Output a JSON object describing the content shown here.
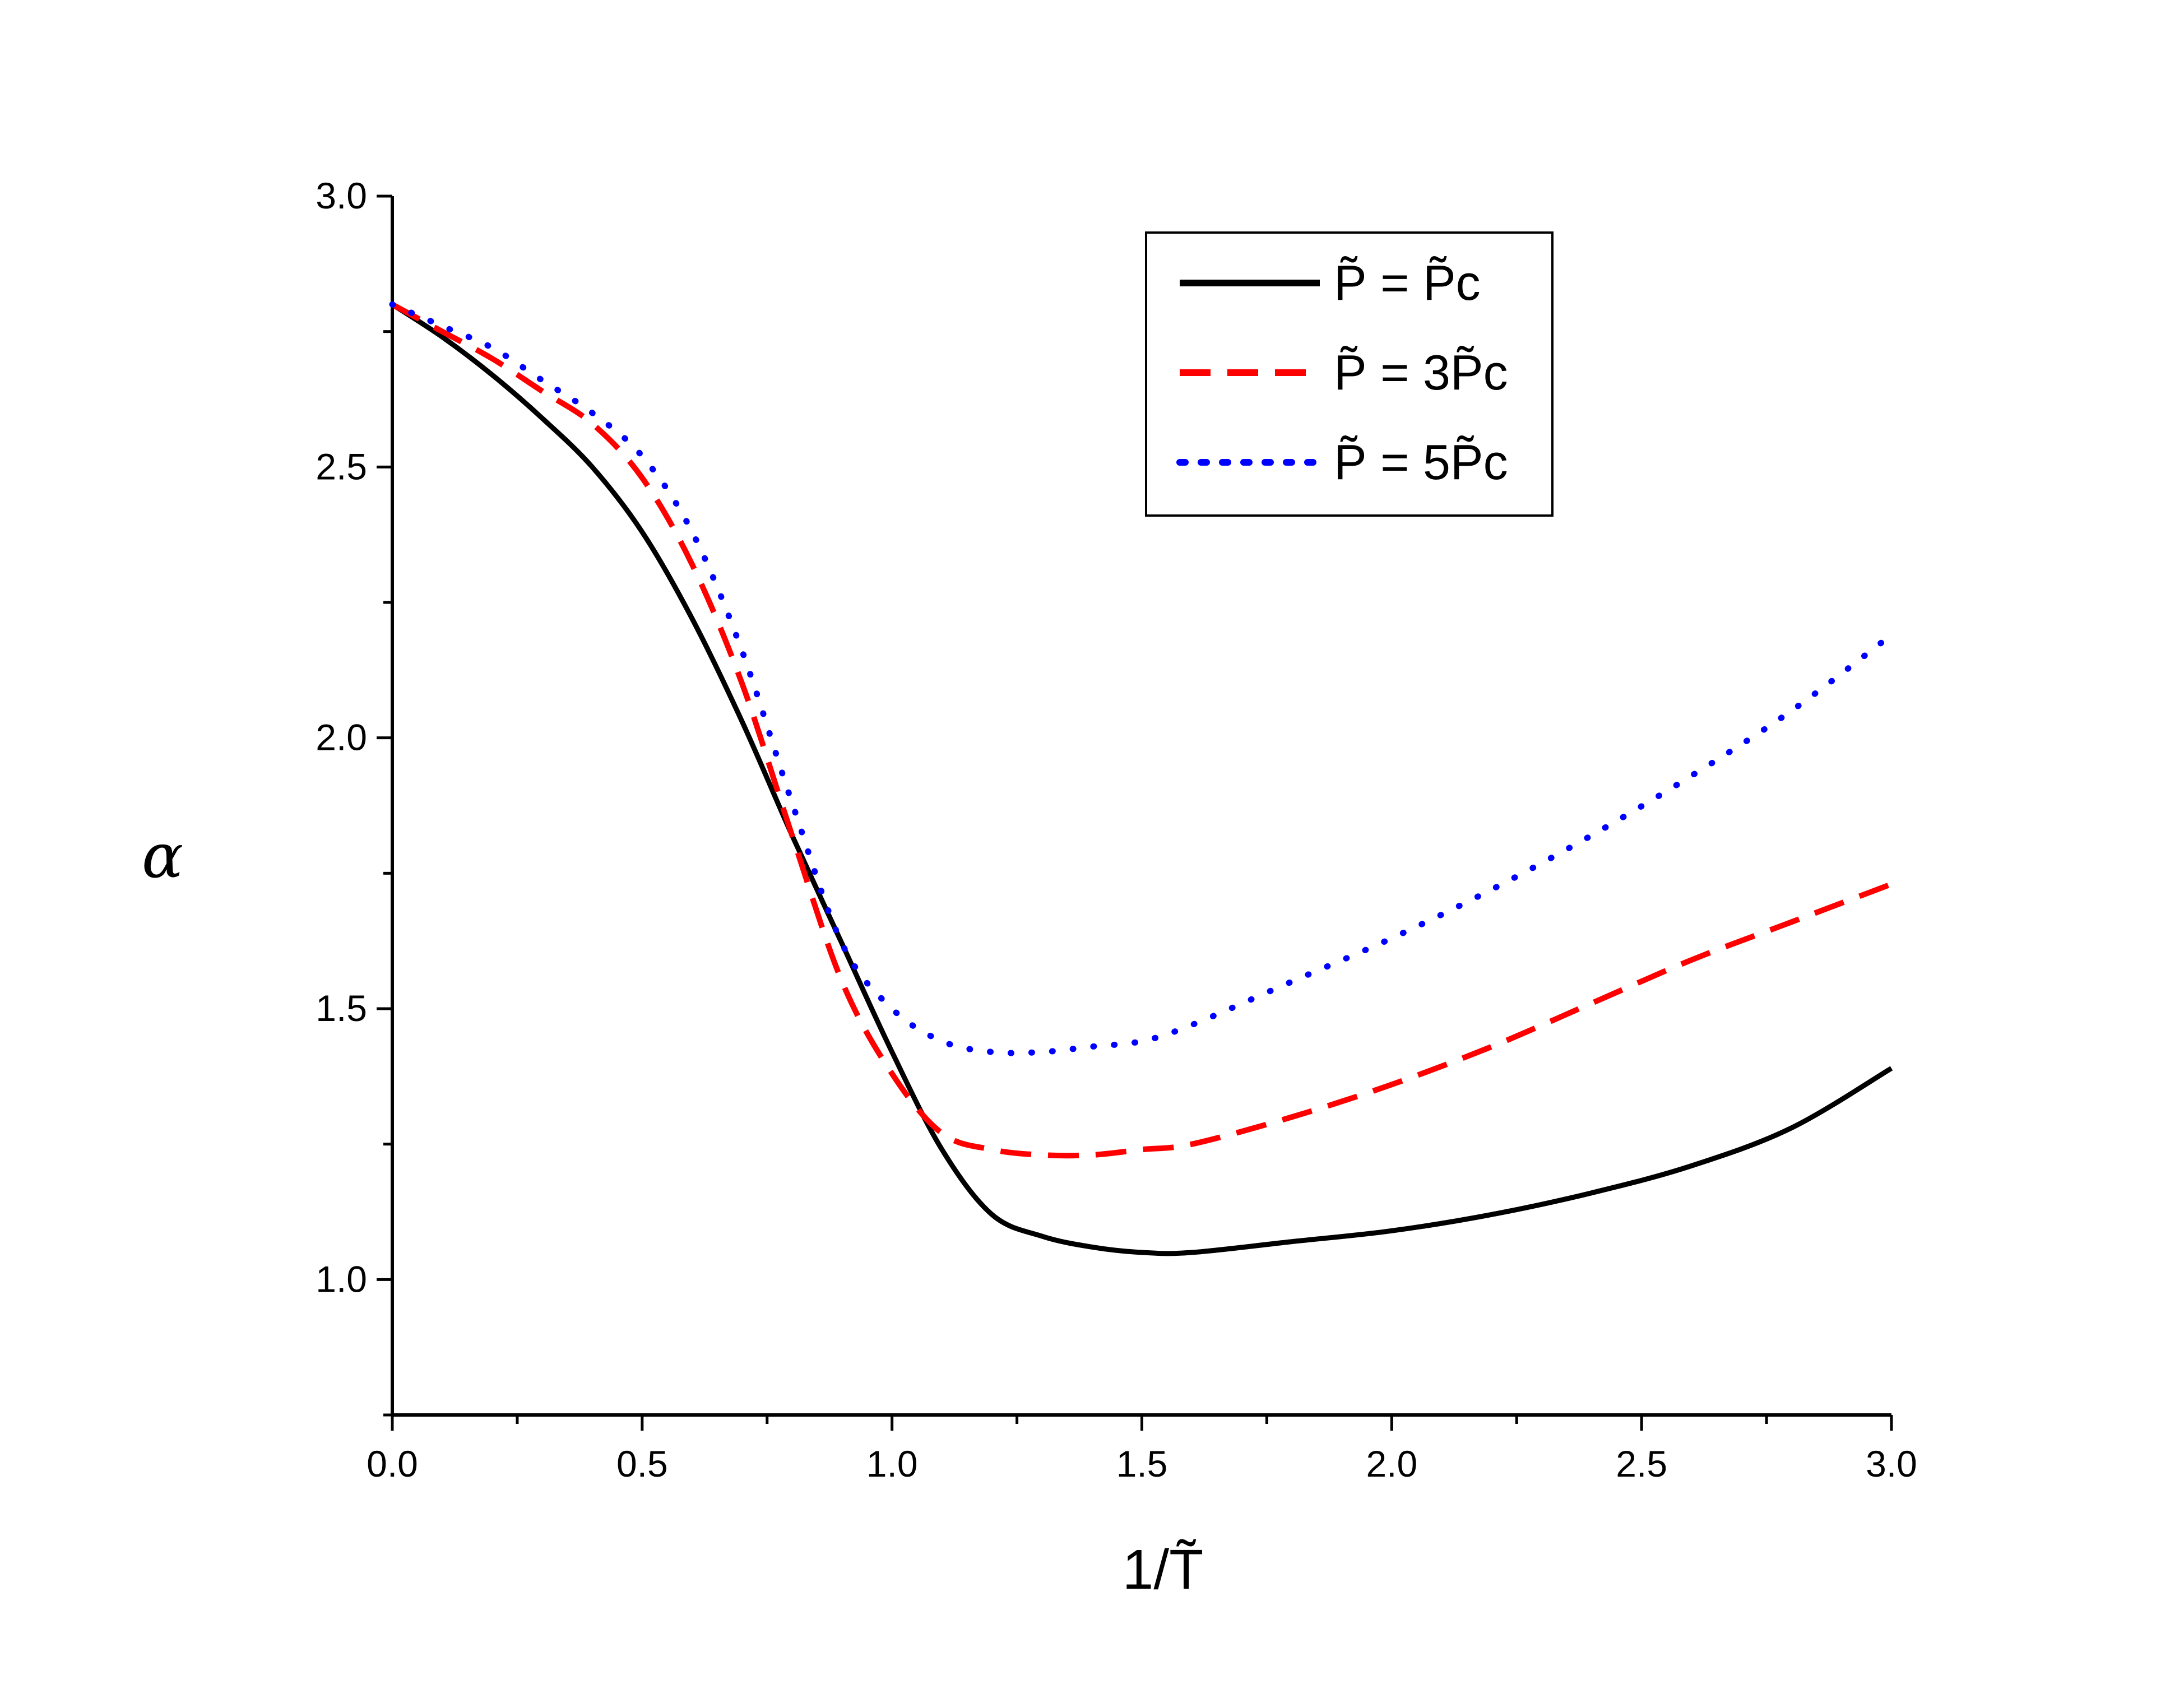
{
  "chart_data": {
    "type": "line",
    "title": "",
    "xlabel": "1/T̃",
    "ylabel": "α",
    "xlim": [
      0.0,
      3.0
    ],
    "ylim": [
      0.75,
      3.0
    ],
    "xticks": [
      "0.0",
      "0.5",
      "1.0",
      "1.5",
      "2.0",
      "2.5",
      "3.0"
    ],
    "yticks": [
      "1.0",
      "1.5",
      "2.0",
      "2.5",
      "3.0"
    ],
    "grid": false,
    "legend_position": "top-right",
    "series": [
      {
        "name": "P̃ = P̃c",
        "color": "#000000",
        "style": "solid",
        "x": [
          0.0,
          0.1,
          0.2,
          0.3,
          0.4,
          0.5,
          0.6,
          0.7,
          0.8,
          0.9,
          1.0,
          1.1,
          1.2,
          1.3,
          1.4,
          1.5,
          1.6,
          1.8,
          2.0,
          2.2,
          2.4,
          2.6,
          2.8,
          3.0
        ],
        "y": [
          2.8,
          2.74,
          2.67,
          2.59,
          2.5,
          2.38,
          2.22,
          2.03,
          1.82,
          1.62,
          1.42,
          1.24,
          1.12,
          1.08,
          1.06,
          1.05,
          1.05,
          1.07,
          1.09,
          1.12,
          1.16,
          1.21,
          1.28,
          1.39
        ]
      },
      {
        "name": "P̃ = 3P̃c",
        "color": "#ff0000",
        "style": "dashed",
        "x": [
          0.0,
          0.1,
          0.2,
          0.3,
          0.4,
          0.5,
          0.6,
          0.7,
          0.8,
          0.9,
          1.0,
          1.1,
          1.2,
          1.3,
          1.4,
          1.5,
          1.6,
          1.8,
          2.0,
          2.2,
          2.4,
          2.6,
          2.8,
          3.0
        ],
        "y": [
          2.8,
          2.75,
          2.7,
          2.64,
          2.58,
          2.48,
          2.32,
          2.1,
          1.82,
          1.55,
          1.38,
          1.27,
          1.24,
          1.23,
          1.23,
          1.24,
          1.25,
          1.3,
          1.36,
          1.43,
          1.51,
          1.59,
          1.66,
          1.73
        ]
      },
      {
        "name": "P̃ = 5P̃c",
        "color": "#0000ff",
        "style": "dotted",
        "x": [
          0.0,
          0.1,
          0.2,
          0.3,
          0.4,
          0.5,
          0.6,
          0.7,
          0.8,
          0.9,
          1.0,
          1.1,
          1.2,
          1.3,
          1.4,
          1.5,
          1.6,
          1.8,
          2.0,
          2.2,
          2.4,
          2.6,
          2.8,
          3.0
        ],
        "y": [
          2.8,
          2.76,
          2.72,
          2.66,
          2.6,
          2.52,
          2.38,
          2.16,
          1.88,
          1.62,
          1.5,
          1.44,
          1.42,
          1.42,
          1.43,
          1.44,
          1.47,
          1.55,
          1.63,
          1.72,
          1.82,
          1.93,
          2.05,
          2.19
        ]
      }
    ]
  }
}
